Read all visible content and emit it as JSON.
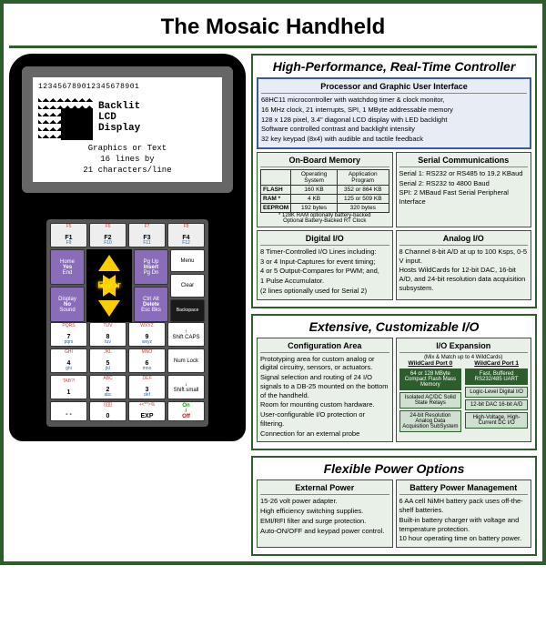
{
  "title": "The Mosaic Handheld",
  "screen": {
    "top_numbers": "123456789012345678901",
    "backlit1": "Backlit",
    "backlit2": "LCD",
    "backlit3": "Display",
    "line1": "Graphics or Text",
    "line2": "16 lines by",
    "line3": "21 characters/line"
  },
  "panels": {
    "p1": {
      "title": "High-Performance, Real-Time Controller",
      "proc": {
        "title": "Processor and Graphic User Interface",
        "l1": "68HC11 microcontroller with watchdog timer & clock monitor,",
        "l2": "16 MHz clock, 21 interrupts, SPI, 1 MByte addressable memory",
        "l3": "128 x 128 pixel, 3.4\" diagonal LCD display with LED backlight",
        "l4": "Software controlled contrast and backlight intensity",
        "l5": "32 key keypad (8x4) with audible and tactile feedback"
      },
      "mem": {
        "title": "On-Board Memory",
        "h1": "Operating System",
        "h2": "Application Program",
        "r1a": "FLASH",
        "r1b": "160 KB",
        "r1c": "352 or 864 KB",
        "r2a": "RAM *",
        "r2b": "4 KB",
        "r2c": "125 or 509 KB",
        "r3a": "EEPROM",
        "r3b": "192 bytes",
        "r3c": "320 bytes",
        "note1": "* 128K RAM optionally battery-backed",
        "note2": "Optional Battery-Backed RT Clock"
      },
      "serial": {
        "title": "Serial Communications",
        "l1": "Serial 1: RS232 or RS485 to 19.2 KBaud",
        "l2": "Serial 2: RS232 to 4800 Baud",
        "l3": "SPI: 2 MBaud Fast Serial Peripheral Interface"
      },
      "digital": {
        "title": "Digital I/O",
        "l1": "8 Timer-Controlled I/O Lines including:",
        "l2": "3 or 4 Input-Captures for event timing;",
        "l3": "4 or 5 Output-Compares for PWM; and,",
        "l4": "1 Pulse Accumulator.",
        "l5": "(2 lines optionally used for Serial 2)"
      },
      "analog": {
        "title": "Analog I/O",
        "l1": "8 Channel 8-bit A/D at up to 100 Ksps, 0-5 V input.",
        "l2": "Hosts WildCards for 12-bit DAC, 16-bit A/D, and 24-bit resolution data acquisition subsystem."
      }
    },
    "p2": {
      "title": "Extensive, Customizable I/O",
      "config": {
        "title": "Configuration Area",
        "l1": "Prototyping area for custom analog or digital circuitry, sensors, or actuators.",
        "l2": "Signal selection and routing of 24 I/O signals to a DB-25 mounted on the bottom of the handheld.",
        "l3": "Room for mounting custom hardware.",
        "l4": "User-configurable I/O protection or filtering.",
        "l5": "Connection for an external probe"
      },
      "exp": {
        "title": "I/O Expansion",
        "sub": "(Mix & Match up to 4 WildCards)",
        "port0": "WildCard Port 0",
        "port1": "WildCard Port 1",
        "w1": "64 or 128 MByte Compact Flash Mass Memory",
        "w2": "Isolated AC/DC Solid State Relays",
        "w3": "24-bit Resolution Analog Data Acquisition SubSystem",
        "w4": "Fast, Buffered RS232/485 UART",
        "w5": "Logic-Level Digital I/O",
        "w6": "12-bit DAC 16-bit A/D",
        "w7": "High-Voltage, High-Current DC I/O"
      }
    },
    "p3": {
      "title": "Flexible Power Options",
      "ext": {
        "title": "External Power",
        "l1": "15-26 volt power adapter.",
        "l2": "High efficiency switching supplies.",
        "l3": "EMI/RFI filter and surge protection.",
        "l4": "Auto-ON/OFF and keypad power control."
      },
      "bat": {
        "title": "Battery Power Management",
        "l1": "6 AA cell NiMH battery pack uses off-the-shelf batteries.",
        "l2": "Built-in battery charger with voltage and temperature protection.",
        "l3": "10 hour operating time on battery power."
      }
    }
  },
  "keys": {
    "f1": "F1",
    "f2": "F2",
    "f3": "F3",
    "f4": "F4",
    "home": "Home",
    "yes": "Yes",
    "end": "End",
    "pgup": "Pg Up",
    "insert": "Insert",
    "pgdn": "Pg Dn",
    "menu": "Menu",
    "clear": "Clear",
    "enter": "Enter",
    "display": "Display",
    "no": "No",
    "sound": "Sound",
    "ctrl": "Ctrl Alt",
    "delete": "Delete",
    "esc": "Esc Bks",
    "back": "Backspace",
    "n7": "7",
    "n8": "8",
    "n9": "9",
    "n4": "4",
    "n5": "5",
    "n6": "6",
    "n1": "1",
    "n2": "2",
    "n3": "3",
    "n0": "0",
    "pqrs": "PQRS",
    "tuv": "TUV",
    "wxyz": "WXYZ",
    "ghi": "GHI",
    "jkl": "JKL",
    "mno": "MNO",
    "tab": "TAB?!",
    "abc": "ABC",
    "def": "DEF",
    "shiftcaps": "Shift CAPS",
    "numlock": "Num Lock",
    "shiftsmall": "Shift small",
    "exp": "EXP",
    "on": "On",
    "off": "Off"
  }
}
